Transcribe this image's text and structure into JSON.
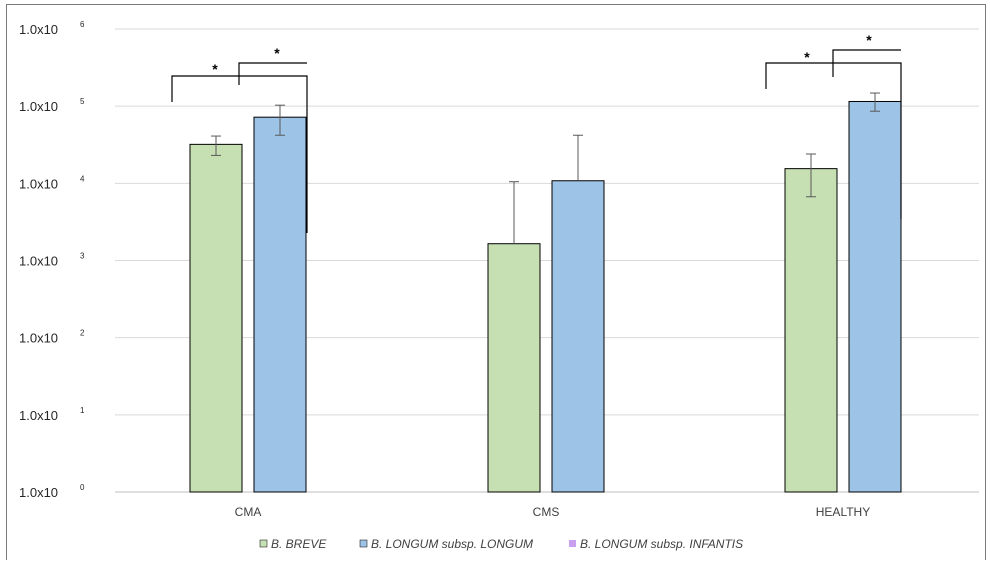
{
  "chart_data": {
    "type": "bar",
    "title": "",
    "xlabel": "",
    "ylabel": "",
    "y_scale": "log10",
    "ylim": [
      1,
      1000000
    ],
    "y_ticks": [
      {
        "base": "1.0x10",
        "exp": "0",
        "value": 1
      },
      {
        "base": "1.0x10",
        "exp": "1",
        "value": 10
      },
      {
        "base": "1.0x10",
        "exp": "2",
        "value": 100
      },
      {
        "base": "1.0x10",
        "exp": "3",
        "value": 1000
      },
      {
        "base": "1.0x10",
        "exp": "4",
        "value": 10000
      },
      {
        "base": "1.0x10",
        "exp": "5",
        "value": 100000
      },
      {
        "base": "1.0x10",
        "exp": "6",
        "value": 1000000
      }
    ],
    "grid": true,
    "legend_position": "bottom",
    "categories": [
      "CMA",
      "CMS",
      "HEALTHY"
    ],
    "series": [
      {
        "name": "B. BREVE",
        "color": "#c6e0b4",
        "values": [
          32000,
          1650,
          15500
        ],
        "error_low": [
          23000,
          1650,
          6700
        ],
        "error_high": [
          41000,
          10500,
          24000
        ]
      },
      {
        "name": "B. LONGUM subsp. LONGUM",
        "color": "#9dc3e6",
        "values": [
          72000,
          10800,
          115000
        ],
        "error_low": [
          42000,
          10800,
          86000
        ],
        "error_high": [
          103000,
          42000,
          148000
        ]
      },
      {
        "name": "B. LONGUM subsp. INFANTIS",
        "color": "#c9a0f0",
        "values": [
          null,
          null,
          null
        ]
      }
    ],
    "annotations": [
      {
        "category": "CMA",
        "text": "*",
        "type": "significance-bracket"
      },
      {
        "category": "CMA",
        "text": "*",
        "type": "significance-bracket"
      },
      {
        "category": "HEALTHY",
        "text": "*",
        "type": "significance-bracket"
      },
      {
        "category": "HEALTHY",
        "text": "*",
        "type": "significance-bracket"
      }
    ]
  }
}
